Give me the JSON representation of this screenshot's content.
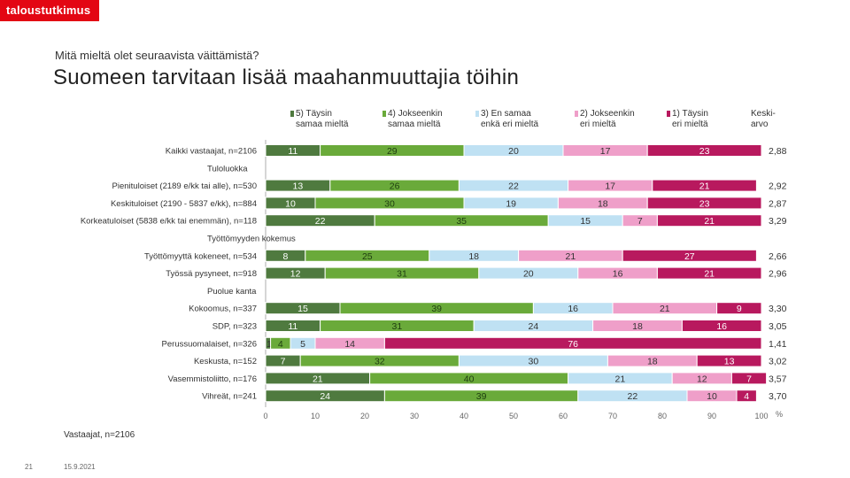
{
  "header": {
    "brand": "taloustutkimus",
    "question": "Mitä mieltä olet seuraavista väittämistä?",
    "title": "Suomeen tarvitaan lisää maahanmuuttajia töihin"
  },
  "footer": {
    "base_note": "Vastaajat, n=2106",
    "slide_number": "21",
    "date": "15.9.2021"
  },
  "chart_data": {
    "type": "bar",
    "orientation": "horizontal",
    "stacked": true,
    "title": "Suomeen tarvitaan lisää maahanmuuttajia töihin",
    "xlim": [
      0,
      100
    ],
    "xticks": [
      "0",
      "10",
      "20",
      "30",
      "40",
      "50",
      "60",
      "70",
      "80",
      "90",
      "100"
    ],
    "x_unit": "%",
    "mean_header": "Keski-\narvo",
    "series": [
      {
        "name": "5) Täysin\nsamaa mieltä",
        "color": "#4f7a3f"
      },
      {
        "name": "4) Jokseenkin\nsamaa mieltä",
        "color": "#6aaa3a"
      },
      {
        "name": "3) En samaa\nenkä eri mieltä",
        "color": "#bfe1f3"
      },
      {
        "name": "2) Jokseenkin\neri mieltä",
        "color": "#ef9fc9"
      },
      {
        "name": "1) Täysin\neri mieltä",
        "color": "#b8195e"
      }
    ],
    "rows": [
      {
        "kind": "bar",
        "label": "Kaikki vastaajat, n=2106",
        "values": [
          11,
          29,
          20,
          17,
          23
        ],
        "mean": "2,88"
      },
      {
        "kind": "group",
        "label": "Tuloluokka"
      },
      {
        "kind": "bar",
        "label": "Pienituloiset (2189 e/kk tai alle), n=530",
        "values": [
          13,
          26,
          22,
          17,
          21
        ],
        "mean": "2,92"
      },
      {
        "kind": "bar",
        "label": "Keskituloiset (2190 - 5837 e/kk), n=884",
        "values": [
          10,
          30,
          19,
          18,
          23
        ],
        "mean": "2,87"
      },
      {
        "kind": "bar",
        "label": "Korkeatuloiset (5838 e/kk tai enemmän), n=118",
        "values": [
          22,
          35,
          15,
          7,
          21
        ],
        "mean": "3,29"
      },
      {
        "kind": "group",
        "label": "Työttömyyden kokemus"
      },
      {
        "kind": "bar",
        "label": "Työttömyyttä kokeneet, n=534",
        "values": [
          8,
          25,
          18,
          21,
          27
        ],
        "mean": "2,66"
      },
      {
        "kind": "bar",
        "label": "Työssä pysyneet, n=918",
        "values": [
          12,
          31,
          20,
          16,
          21
        ],
        "mean": "2,96"
      },
      {
        "kind": "group",
        "label": "Puolue kanta"
      },
      {
        "kind": "bar",
        "label": "Kokoomus, n=337",
        "values": [
          15,
          39,
          16,
          21,
          9
        ],
        "mean": "3,30"
      },
      {
        "kind": "bar",
        "label": "SDP, n=323",
        "values": [
          11,
          31,
          24,
          18,
          16
        ],
        "mean": "3,05"
      },
      {
        "kind": "bar",
        "label": "Perussuomalaiset, n=326",
        "values": [
          1,
          4,
          5,
          14,
          76
        ],
        "mean": "1,41"
      },
      {
        "kind": "bar",
        "label": "Keskusta, n=152",
        "values": [
          7,
          32,
          30,
          18,
          13
        ],
        "mean": "3,02"
      },
      {
        "kind": "bar",
        "label": "Vasemmistoliitto, n=176",
        "values": [
          21,
          40,
          21,
          12,
          7
        ],
        "mean": "3,57"
      },
      {
        "kind": "bar",
        "label": "Vihreät, n=241",
        "values": [
          24,
          39,
          22,
          10,
          4
        ],
        "mean": "3,70"
      }
    ]
  }
}
